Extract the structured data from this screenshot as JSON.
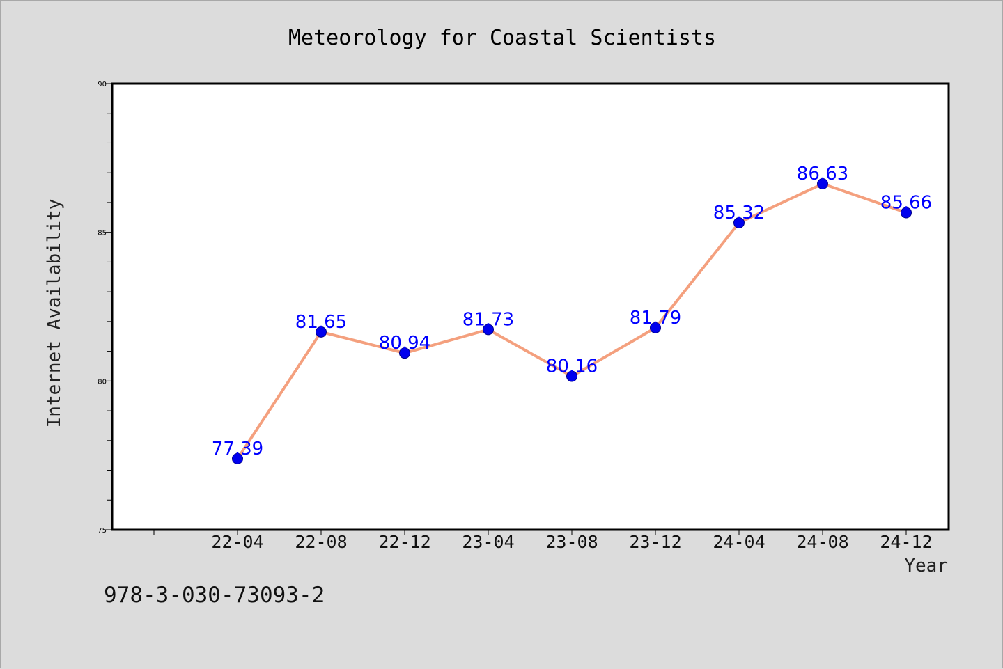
{
  "chart_data": {
    "type": "line",
    "title": "Meteorology for Coastal Scientists",
    "xlabel": "Year",
    "ylabel": "Internet Availability",
    "categories": [
      "22-04",
      "22-08",
      "22-12",
      "23-04",
      "23-08",
      "23-12",
      "24-04",
      "24-08",
      "24-12"
    ],
    "series": [
      {
        "values": [
          77.39,
          81.65,
          80.94,
          81.73,
          80.16,
          81.79,
          85.32,
          86.63,
          85.66
        ],
        "line_color": "#f4a07e",
        "marker_color": "#0000ee",
        "label_color": "#0000ff"
      }
    ],
    "data_labels": [
      "77.39",
      "81.65",
      "80.94",
      "81.73",
      "80.16",
      "81.79",
      "85.32",
      "86.63",
      "85.66"
    ],
    "ylim": [
      75,
      90
    ],
    "yticks": [
      "75",
      "80",
      "85",
      "90"
    ],
    "grid": false,
    "legend": "none"
  },
  "footer": {
    "isbn": "978-3-030-73093-2"
  },
  "colors": {
    "background": "#dcdcdc",
    "plot_background": "#ffffff",
    "axis": "#000000"
  }
}
